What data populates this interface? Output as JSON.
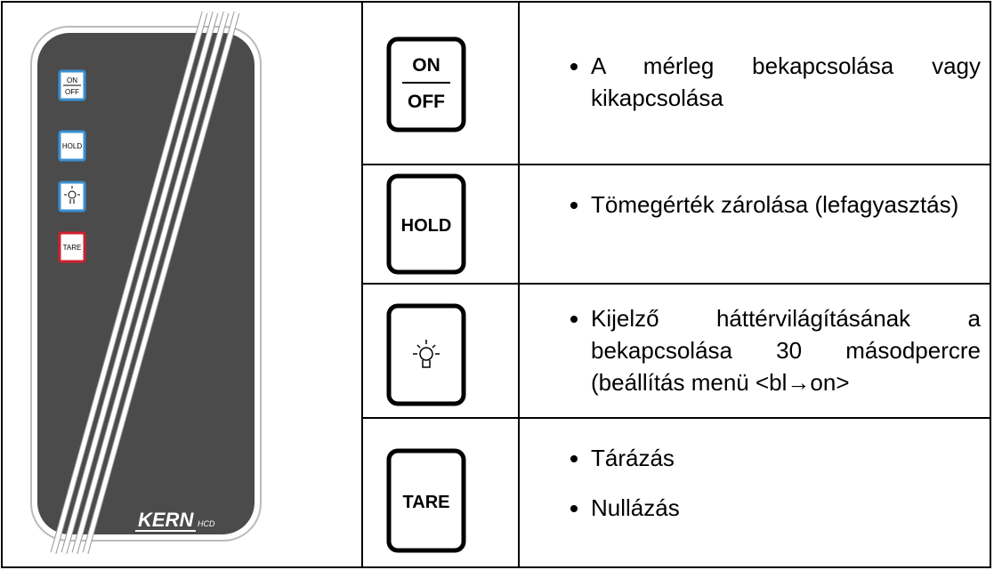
{
  "device": {
    "on": "ON",
    "off": "OFF",
    "hold": "HOLD",
    "tare": "TARE",
    "brand": "KERN",
    "model": "HCD"
  },
  "table": {
    "rows": [
      {
        "key": [
          "ON",
          "OFF"
        ],
        "items": [
          "A mérleg bekapcsolása vagy kikapcsolása"
        ]
      },
      {
        "key": [
          "HOLD"
        ],
        "items": [
          "Tömegérték zárolása (lefagyasztás)"
        ]
      },
      {
        "key": [],
        "items": [
          "Kijelző háttérvilágításának a bekapcsolása 30 másodpercre (beállítás menü <bl→on>"
        ]
      },
      {
        "key": [
          "TARE"
        ],
        "items": [
          "Tárázás",
          "Nullázás"
        ]
      }
    ]
  }
}
